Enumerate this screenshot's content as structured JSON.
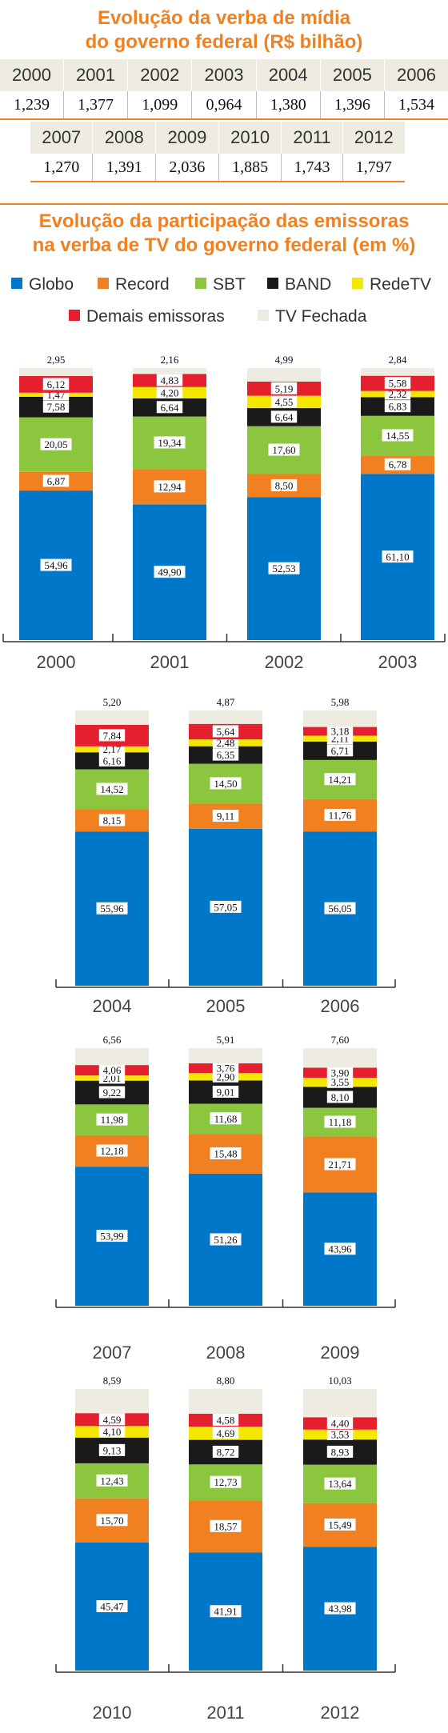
{
  "budget": {
    "title_line1": "Evolução da verba de mídia",
    "title_line2": "do governo federal (R$ bilhão)",
    "years1": [
      "2000",
      "2001",
      "2002",
      "2003",
      "2004",
      "2005",
      "2006"
    ],
    "values1": [
      "1,239",
      "1,377",
      "1,099",
      "0,964",
      "1,380",
      "1,396",
      "1,534"
    ],
    "years2": [
      "2007",
      "2008",
      "2009",
      "2010",
      "2011",
      "2012"
    ],
    "values2": [
      "1,270",
      "1,391",
      "2,036",
      "1,885",
      "1,743",
      "1,797"
    ]
  },
  "share": {
    "title_line1": "Evolução da participação das emissoras",
    "title_line2": "na verba de TV do governo federal (em %)"
  },
  "legend": [
    {
      "name": "Globo",
      "color": "#0077c8"
    },
    {
      "name": "Record",
      "color": "#f08020"
    },
    {
      "name": "SBT",
      "color": "#8cc63f"
    },
    {
      "name": "BAND",
      "color": "#1a1a1a"
    },
    {
      "name": "RedeTV",
      "color": "#f5e800"
    },
    {
      "name": "Demais emissoras",
      "color": "#e5202e"
    },
    {
      "name": "TV Fechada",
      "color": "#eeebe0"
    }
  ],
  "chart_data": [
    {
      "type": "bar",
      "stacked": true,
      "title": "Evolução da verba de mídia do governo federal (R$ bilhão)",
      "categories": [
        "2000",
        "2001",
        "2002",
        "2003",
        "2004",
        "2005",
        "2006",
        "2007",
        "2008",
        "2009",
        "2010",
        "2011",
        "2012"
      ],
      "values": [
        1.239,
        1.377,
        1.099,
        0.964,
        1.38,
        1.396,
        1.534,
        1.27,
        1.391,
        2.036,
        1.885,
        1.743,
        1.797
      ]
    },
    {
      "type": "bar",
      "stacked": true,
      "title": "Evolução da participação das emissoras na verba de TV do governo federal (em %)",
      "categories": [
        "2000",
        "2001",
        "2002",
        "2003",
        "2004",
        "2005",
        "2006",
        "2007",
        "2008",
        "2009",
        "2010",
        "2011",
        "2012"
      ],
      "series": [
        {
          "name": "Globo",
          "values": [
            54.96,
            49.9,
            52.53,
            61.1,
            55.96,
            57.05,
            56.05,
            53.99,
            51.26,
            43.96,
            45.47,
            41.91,
            43.98
          ]
        },
        {
          "name": "Record",
          "values": [
            6.87,
            12.94,
            8.5,
            6.78,
            8.15,
            9.11,
            11.76,
            12.18,
            15.48,
            21.71,
            15.7,
            18.57,
            15.49
          ]
        },
        {
          "name": "SBT",
          "values": [
            20.05,
            19.34,
            17.6,
            14.55,
            14.52,
            14.5,
            14.21,
            11.98,
            11.68,
            11.18,
            12.43,
            12.73,
            13.64
          ]
        },
        {
          "name": "BAND",
          "values": [
            7.58,
            6.64,
            6.64,
            6.83,
            6.16,
            6.35,
            6.71,
            9.22,
            9.01,
            8.1,
            9.13,
            8.72,
            8.93
          ]
        },
        {
          "name": "RedeTV",
          "values": [
            1.47,
            4.2,
            4.55,
            2.32,
            2.17,
            2.48,
            2.11,
            2.01,
            2.9,
            3.55,
            4.1,
            4.69,
            3.53
          ]
        },
        {
          "name": "Demais emissoras",
          "values": [
            6.12,
            4.83,
            5.19,
            5.58,
            7.84,
            5.64,
            3.18,
            4.06,
            3.76,
            3.9,
            4.59,
            4.58,
            4.4
          ]
        },
        {
          "name": "TV Fechada",
          "values": [
            2.95,
            2.16,
            4.99,
            2.84,
            5.2,
            4.87,
            5.98,
            6.56,
            5.91,
            7.6,
            8.59,
            8.8,
            10.03
          ]
        }
      ],
      "labels": [
        [
          "54,96",
          "6,87",
          "20,05",
          "7,58",
          "1,47",
          "6,12",
          "2,95"
        ],
        [
          "49,90",
          "12,94",
          "19,34",
          "6,64",
          "4,20",
          "4,83",
          "2,16"
        ],
        [
          "52,53",
          "8,50",
          "17,60",
          "6,64",
          "4,55",
          "5,19",
          "4,99"
        ],
        [
          "61,10",
          "6,78",
          "14,55",
          "6,83",
          "2,32",
          "5,58",
          "2,84"
        ],
        [
          "55,96",
          "8,15",
          "14,52",
          "6,16",
          "2,17",
          "7,84",
          "5,20"
        ],
        [
          "57,05",
          "9,11",
          "14,50",
          "6,35",
          "2,48",
          "5,64",
          "4,87"
        ],
        [
          "56,05",
          "11,76",
          "14,21",
          "6,71",
          "2,11",
          "3,18",
          "5,98"
        ],
        [
          "53,99",
          "12,18",
          "11,98",
          "9,22",
          "2,01",
          "4,06",
          "6,56"
        ],
        [
          "51,26",
          "15,48",
          "11,68",
          "9,01",
          "2,90",
          "3,76",
          "5,91"
        ],
        [
          "43,96",
          "21,71",
          "11,18",
          "8,10",
          "3,55",
          "3,90",
          "7,60"
        ],
        [
          "45,47",
          "15,70",
          "12,43",
          "9,13",
          "4,10",
          "4,59",
          "8,59"
        ],
        [
          "41,91",
          "18,57",
          "12,73",
          "8,72",
          "4,69",
          "4,58",
          "8,80"
        ],
        [
          "43,98",
          "15,49",
          "13,64",
          "8,93",
          "3,53",
          "4,40",
          "10,03"
        ]
      ],
      "ylim": [
        0,
        100
      ]
    }
  ]
}
